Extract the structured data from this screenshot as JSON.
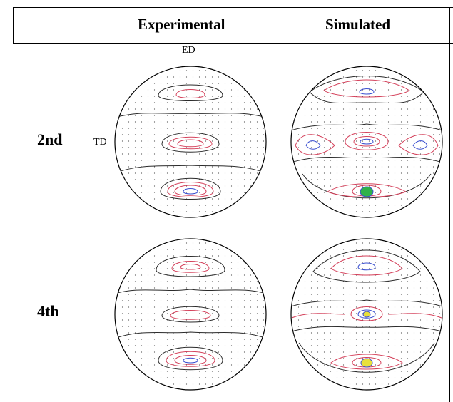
{
  "figure": {
    "column_headers": [
      "Experimental",
      "Simulated"
    ],
    "row_headers": [
      "2nd",
      "4th"
    ],
    "axis_labels": {
      "top": "ED",
      "left": "TD"
    }
  },
  "colors": {
    "outline": "#000000",
    "contour_black": "#2b2b2b",
    "contour_red": "#d4405a",
    "contour_blue": "#3a4fd0",
    "contour_green": "#2fb24a",
    "contour_yellow": "#e8e03a",
    "dots": "#555555"
  }
}
